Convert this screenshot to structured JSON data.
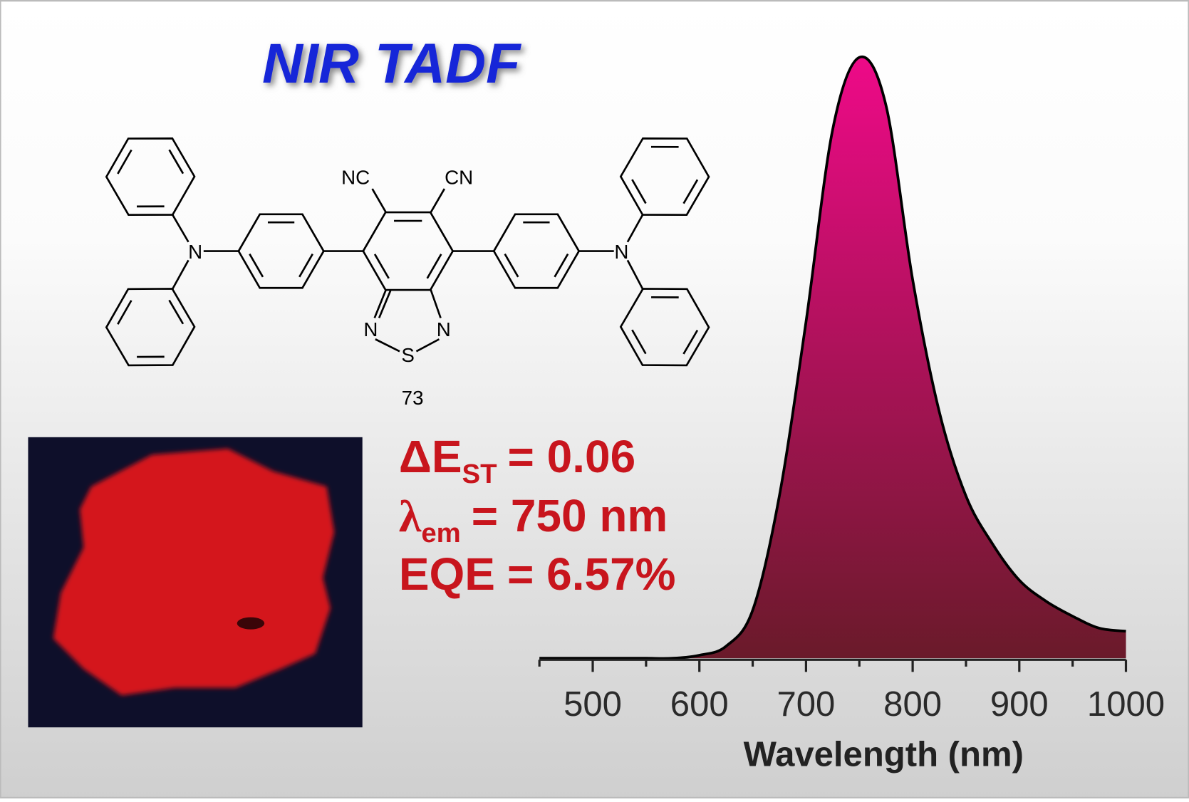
{
  "title": "NIR TADF",
  "molecule": {
    "substituents": [
      "NC",
      "CN"
    ],
    "amines": [
      "N",
      "N"
    ],
    "thiadiazole": [
      "N",
      "S",
      "N"
    ],
    "label": "73"
  },
  "properties": [
    {
      "symbol": "ΔE",
      "subscript": "ST",
      "text": "= 0.06"
    },
    {
      "symbol": "λ",
      "subscript": "em",
      "text": "= 750 nm"
    },
    {
      "symbol": "EQE",
      "text": "= 6.57%"
    }
  ],
  "chart_data": {
    "type": "area",
    "x_label": "Wavelength (nm)",
    "x": [
      450,
      475,
      500,
      525,
      550,
      575,
      600,
      625,
      650,
      675,
      700,
      725,
      750,
      775,
      800,
      825,
      850,
      875,
      900,
      925,
      950,
      975,
      1000
    ],
    "values": [
      0,
      0,
      0,
      0,
      0,
      0,
      0.005,
      0.02,
      0.08,
      0.27,
      0.56,
      0.88,
      1.0,
      0.92,
      0.63,
      0.41,
      0.27,
      0.19,
      0.13,
      0.095,
      0.07,
      0.05,
      0.045
    ],
    "xlim": [
      450,
      1000
    ],
    "ylim": [
      0,
      1
    ],
    "xticks": [
      500,
      600,
      700,
      800,
      900,
      1000
    ],
    "xminorticks": [
      450,
      550,
      650,
      750,
      850,
      950
    ],
    "color_top": "#ee0a88",
    "color_bottom": "#6a1a2a",
    "line_color": "#000000"
  }
}
